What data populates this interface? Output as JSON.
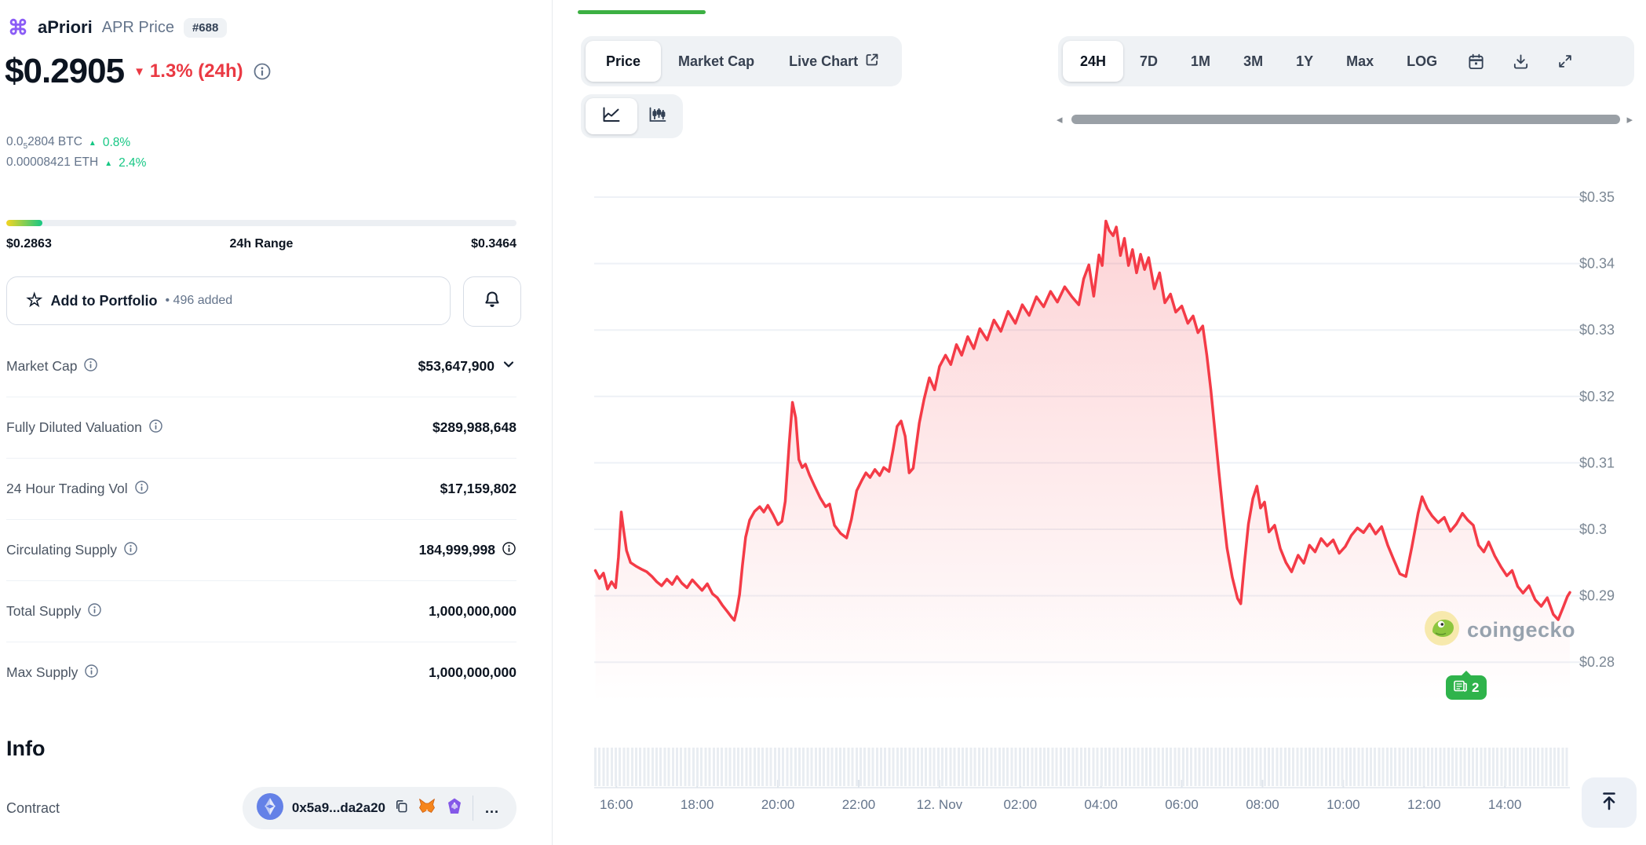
{
  "colors": {
    "accent_red": "#ea3943",
    "accent_green": "#16c784",
    "chart_line": "#f43b47",
    "tab_indicator_green": "#3cb043",
    "range_gradient_start": "#f4d521",
    "range_gradient_end": "#16c784"
  },
  "icons": {
    "logo_glyph": "⌘",
    "down_triangle": "▼",
    "up_triangle": "▲",
    "star": "☆",
    "dot": "•",
    "arrow_left": "◂",
    "arrow_right": "▸"
  },
  "left_panel": {
    "coin": {
      "name": "aPriori",
      "subtitle": "APR Price",
      "rank": "#688"
    },
    "price": {
      "value": "$0.2905",
      "change_pct": "1.3% (24h)",
      "direction": "down"
    },
    "conversions": [
      {
        "prefix": "0.0",
        "sub": "5",
        "suffix": "2804 BTC",
        "change": "0.8%"
      },
      {
        "prefix": "0.00008421 ETH",
        "sub": "",
        "suffix": "",
        "change": "2.4%"
      }
    ],
    "range": {
      "low": "$0.2863",
      "label": "24h Range",
      "high": "$0.3464",
      "fill_pct": 7
    },
    "portfolio": {
      "label": "Add to Portfolio",
      "separator": "•",
      "added_count": "496 added"
    },
    "stats": [
      {
        "label": "Market Cap",
        "value": "$53,647,900"
      },
      {
        "label": "Fully Diluted Valuation",
        "value": "$289,988,648"
      },
      {
        "label": "24 Hour Trading Vol",
        "value": "$17,159,802"
      },
      {
        "label": "Circulating Supply",
        "value": "184,999,998"
      },
      {
        "label": "Total Supply",
        "value": "1,000,000,000"
      },
      {
        "label": "Max Supply",
        "value": "1,000,000,000"
      }
    ],
    "info": {
      "heading": "Info",
      "contract_label": "Contract",
      "contract_address": "0x5a9...da2a20",
      "more": "..."
    }
  },
  "chart_panel": {
    "view_tabs": [
      {
        "label": "Price",
        "active": true
      },
      {
        "label": "Market Cap",
        "active": false
      },
      {
        "label": "Live Chart",
        "active": false,
        "external": true
      }
    ],
    "ranges": [
      "24H",
      "7D",
      "1M",
      "3M",
      "1Y",
      "Max",
      "LOG"
    ],
    "active_range": "24H",
    "watermark": "coingecko",
    "news_badge_count": "2"
  },
  "chart_data": {
    "type": "area",
    "title": "aPriori (APR) price, 24H view",
    "line_color": "#f43b47",
    "grid": "horizontal",
    "legend": "none",
    "y_axis_side": "right",
    "x_ticks": [
      {
        "t": 16,
        "label": "16:00"
      },
      {
        "t": 18,
        "label": "18:00"
      },
      {
        "t": 20,
        "label": "20:00"
      },
      {
        "t": 22,
        "label": "22:00"
      },
      {
        "t": 24,
        "label": "12. Nov"
      },
      {
        "t": 26,
        "label": "02:00"
      },
      {
        "t": 28,
        "label": "04:00"
      },
      {
        "t": 30,
        "label": "06:00"
      },
      {
        "t": 32,
        "label": "08:00"
      },
      {
        "t": 34,
        "label": "10:00"
      },
      {
        "t": 36,
        "label": "12:00"
      },
      {
        "t": 38,
        "label": "14:00"
      }
    ],
    "y_ticks": [
      {
        "p": 0.35,
        "label": "$0.35"
      },
      {
        "p": 0.34,
        "label": "$0.34"
      },
      {
        "p": 0.33,
        "label": "$0.33"
      },
      {
        "p": 0.32,
        "label": "$0.32"
      },
      {
        "p": 0.31,
        "label": "$0.31"
      },
      {
        "p": 0.3,
        "label": "$0.3"
      },
      {
        "p": 0.29,
        "label": "$0.29"
      },
      {
        "p": 0.28,
        "label": "$0.28"
      }
    ],
    "x_domain_hours": [
      15.45,
      39.61
    ],
    "y_high": 0.3464,
    "y_low": 0.2863,
    "series": [
      [
        15.48,
        0.2938
      ],
      [
        15.58,
        0.2926
      ],
      [
        15.68,
        0.2934
      ],
      [
        15.78,
        0.291
      ],
      [
        15.88,
        0.2921
      ],
      [
        15.98,
        0.2912
      ],
      [
        16.05,
        0.2958
      ],
      [
        16.12,
        0.3026
      ],
      [
        16.18,
        0.2998
      ],
      [
        16.25,
        0.2968
      ],
      [
        16.35,
        0.295
      ],
      [
        16.5,
        0.2944
      ],
      [
        16.62,
        0.294
      ],
      [
        16.75,
        0.2936
      ],
      [
        16.88,
        0.2929
      ],
      [
        17.0,
        0.2921
      ],
      [
        17.12,
        0.2915
      ],
      [
        17.25,
        0.2925
      ],
      [
        17.38,
        0.2917
      ],
      [
        17.5,
        0.2929
      ],
      [
        17.62,
        0.2919
      ],
      [
        17.75,
        0.2912
      ],
      [
        17.88,
        0.2924
      ],
      [
        18.0,
        0.2916
      ],
      [
        18.12,
        0.2908
      ],
      [
        18.25,
        0.2918
      ],
      [
        18.38,
        0.2903
      ],
      [
        18.5,
        0.2897
      ],
      [
        18.62,
        0.2886
      ],
      [
        18.75,
        0.2876
      ],
      [
        18.85,
        0.2868
      ],
      [
        18.92,
        0.2863
      ],
      [
        18.98,
        0.2878
      ],
      [
        19.05,
        0.2902
      ],
      [
        19.12,
        0.2945
      ],
      [
        19.2,
        0.2988
      ],
      [
        19.3,
        0.3014
      ],
      [
        19.42,
        0.3027
      ],
      [
        19.55,
        0.3034
      ],
      [
        19.65,
        0.3026
      ],
      [
        19.75,
        0.3036
      ],
      [
        19.88,
        0.3022
      ],
      [
        20.0,
        0.3007
      ],
      [
        20.1,
        0.3012
      ],
      [
        20.18,
        0.3042
      ],
      [
        20.28,
        0.313
      ],
      [
        20.36,
        0.3191
      ],
      [
        20.44,
        0.3168
      ],
      [
        20.52,
        0.3105
      ],
      [
        20.6,
        0.3093
      ],
      [
        20.68,
        0.3098
      ],
      [
        20.78,
        0.3082
      ],
      [
        20.9,
        0.3066
      ],
      [
        21.05,
        0.3047
      ],
      [
        21.18,
        0.3034
      ],
      [
        21.28,
        0.3038
      ],
      [
        21.4,
        0.3006
      ],
      [
        21.55,
        0.2994
      ],
      [
        21.7,
        0.2987
      ],
      [
        21.82,
        0.3015
      ],
      [
        21.95,
        0.3058
      ],
      [
        22.08,
        0.3074
      ],
      [
        22.18,
        0.3085
      ],
      [
        22.28,
        0.3078
      ],
      [
        22.4,
        0.309
      ],
      [
        22.52,
        0.3081
      ],
      [
        22.62,
        0.3093
      ],
      [
        22.75,
        0.3087
      ],
      [
        22.85,
        0.3119
      ],
      [
        22.95,
        0.3155
      ],
      [
        23.05,
        0.3163
      ],
      [
        23.15,
        0.314
      ],
      [
        23.25,
        0.3085
      ],
      [
        23.35,
        0.3092
      ],
      [
        23.5,
        0.316
      ],
      [
        23.62,
        0.3196
      ],
      [
        23.75,
        0.3228
      ],
      [
        23.88,
        0.321
      ],
      [
        24.0,
        0.3245
      ],
      [
        24.15,
        0.3262
      ],
      [
        24.28,
        0.3248
      ],
      [
        24.42,
        0.3278
      ],
      [
        24.55,
        0.3262
      ],
      [
        24.7,
        0.329
      ],
      [
        24.85,
        0.3272
      ],
      [
        25.0,
        0.3302
      ],
      [
        25.18,
        0.3285
      ],
      [
        25.35,
        0.3315
      ],
      [
        25.52,
        0.3298
      ],
      [
        25.7,
        0.3328
      ],
      [
        25.88,
        0.331
      ],
      [
        26.05,
        0.3338
      ],
      [
        26.22,
        0.3322
      ],
      [
        26.4,
        0.335
      ],
      [
        26.58,
        0.3335
      ],
      [
        26.75,
        0.3358
      ],
      [
        26.92,
        0.3342
      ],
      [
        27.1,
        0.3365
      ],
      [
        27.28,
        0.335
      ],
      [
        27.45,
        0.3338
      ],
      [
        27.57,
        0.3377
      ],
      [
        27.7,
        0.3398
      ],
      [
        27.82,
        0.3351
      ],
      [
        27.95,
        0.3413
      ],
      [
        28.03,
        0.3397
      ],
      [
        28.12,
        0.3464
      ],
      [
        28.2,
        0.345
      ],
      [
        28.3,
        0.3442
      ],
      [
        28.38,
        0.3455
      ],
      [
        28.48,
        0.3412
      ],
      [
        28.58,
        0.3438
      ],
      [
        28.68,
        0.3397
      ],
      [
        28.78,
        0.3421
      ],
      [
        28.88,
        0.3386
      ],
      [
        28.98,
        0.3414
      ],
      [
        29.08,
        0.3391
      ],
      [
        29.18,
        0.3409
      ],
      [
        29.32,
        0.3362
      ],
      [
        29.45,
        0.3386
      ],
      [
        29.58,
        0.3341
      ],
      [
        29.72,
        0.3354
      ],
      [
        29.85,
        0.3327
      ],
      [
        30.0,
        0.3336
      ],
      [
        30.15,
        0.331
      ],
      [
        30.28,
        0.3321
      ],
      [
        30.4,
        0.3296
      ],
      [
        30.52,
        0.3306
      ],
      [
        30.62,
        0.3262
      ],
      [
        30.72,
        0.321
      ],
      [
        30.82,
        0.3148
      ],
      [
        30.92,
        0.3086
      ],
      [
        31.02,
        0.3026
      ],
      [
        31.12,
        0.2972
      ],
      [
        31.25,
        0.2928
      ],
      [
        31.38,
        0.2896
      ],
      [
        31.46,
        0.2888
      ],
      [
        31.55,
        0.2948
      ],
      [
        31.65,
        0.3008
      ],
      [
        31.76,
        0.3046
      ],
      [
        31.86,
        0.3065
      ],
      [
        31.95,
        0.3032
      ],
      [
        32.05,
        0.3041
      ],
      [
        32.16,
        0.2996
      ],
      [
        32.3,
        0.3006
      ],
      [
        32.44,
        0.2971
      ],
      [
        32.58,
        0.295
      ],
      [
        32.72,
        0.2936
      ],
      [
        32.88,
        0.2961
      ],
      [
        33.02,
        0.2949
      ],
      [
        33.16,
        0.2976
      ],
      [
        33.3,
        0.2966
      ],
      [
        33.45,
        0.2986
      ],
      [
        33.6,
        0.2975
      ],
      [
        33.75,
        0.2984
      ],
      [
        33.9,
        0.2964
      ],
      [
        34.05,
        0.2974
      ],
      [
        34.2,
        0.2991
      ],
      [
        34.35,
        0.3002
      ],
      [
        34.5,
        0.2995
      ],
      [
        34.65,
        0.3008
      ],
      [
        34.8,
        0.2993
      ],
      [
        34.95,
        0.3004
      ],
      [
        35.1,
        0.2976
      ],
      [
        35.25,
        0.2954
      ],
      [
        35.4,
        0.2933
      ],
      [
        35.55,
        0.2929
      ],
      [
        35.7,
        0.2974
      ],
      [
        35.85,
        0.3024
      ],
      [
        35.95,
        0.3049
      ],
      [
        36.08,
        0.3031
      ],
      [
        36.2,
        0.302
      ],
      [
        36.35,
        0.301
      ],
      [
        36.5,
        0.3018
      ],
      [
        36.65,
        0.2997
      ],
      [
        36.8,
        0.3008
      ],
      [
        36.95,
        0.3024
      ],
      [
        37.08,
        0.3014
      ],
      [
        37.22,
        0.3006
      ],
      [
        37.35,
        0.2976
      ],
      [
        37.48,
        0.2966
      ],
      [
        37.6,
        0.2981
      ],
      [
        37.75,
        0.296
      ],
      [
        37.9,
        0.2944
      ],
      [
        38.05,
        0.293
      ],
      [
        38.18,
        0.2938
      ],
      [
        38.32,
        0.2914
      ],
      [
        38.45,
        0.2904
      ],
      [
        38.6,
        0.2915
      ],
      [
        38.75,
        0.2894
      ],
      [
        38.9,
        0.2884
      ],
      [
        39.05,
        0.2897
      ],
      [
        39.2,
        0.2872
      ],
      [
        39.32,
        0.2864
      ],
      [
        39.44,
        0.2882
      ],
      [
        39.55,
        0.2899
      ],
      [
        39.61,
        0.2905
      ]
    ]
  }
}
